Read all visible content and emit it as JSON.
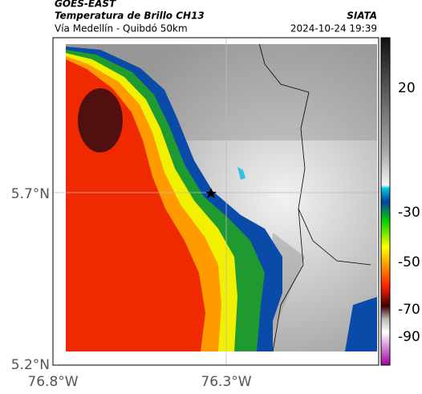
{
  "header": {
    "title": "GOES-EAST",
    "subtitle": "Temperatura de Brillo CH13",
    "route": "Vía Medellín - Quibdó 50km",
    "source": "SIATA",
    "timestamp": "2024-10-24 19:39"
  },
  "axes": {
    "lat_labels": [
      "5.7°N",
      "5.2°N"
    ],
    "lon_labels": [
      "76.8°W",
      "76.3°W"
    ]
  },
  "colorbar": {
    "tick_labels": [
      "20",
      "-30",
      "-50",
      "-70",
      "-90"
    ]
  }
}
